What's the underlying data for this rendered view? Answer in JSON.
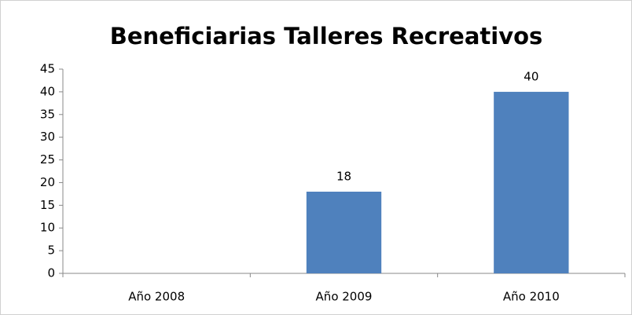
{
  "chart_data": {
    "type": "bar",
    "title": "Beneficiarias Talleres Recreativos",
    "categories": [
      "Año 2008",
      "Año 2009",
      "Año 2010"
    ],
    "values": [
      null,
      18,
      40
    ],
    "color": "#4f81bd",
    "ylim": [
      0,
      45
    ],
    "yticks": [
      0,
      5,
      10,
      15,
      20,
      25,
      30,
      35,
      40,
      45
    ],
    "grid": false
  }
}
